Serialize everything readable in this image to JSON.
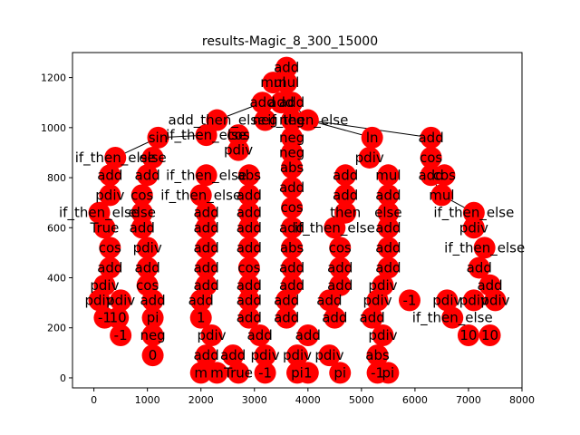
{
  "title": "results-Magic_8_300_15000",
  "chart_data": {
    "type": "scatter",
    "title": "results-Magic_8_300_15000",
    "xlim": [
      -400,
      8000
    ],
    "ylim": [
      -40,
      1300
    ],
    "x_ticks": [
      0,
      1000,
      2000,
      3000,
      4000,
      5000,
      6000,
      7000,
      8000
    ],
    "y_ticks": [
      0,
      200,
      400,
      600,
      800,
      1000,
      1200
    ],
    "node_color": "#ff0000",
    "edge_color": "#000000",
    "nodes": [
      {
        "id": "root",
        "x": 3600,
        "y": 1240,
        "label": "add"
      },
      {
        "id": "n1",
        "x": 3350,
        "y": 1180,
        "label": "mul"
      },
      {
        "id": "n2",
        "x": 3600,
        "y": 1180,
        "label": "mul"
      },
      {
        "id": "n3",
        "x": 3150,
        "y": 1100,
        "label": "add"
      },
      {
        "id": "n4",
        "x": 3500,
        "y": 1100,
        "label": "add"
      },
      {
        "id": "n5",
        "x": 3700,
        "y": 1100,
        "label": "add"
      },
      {
        "id": "ite1",
        "x": 2300,
        "y": 1030,
        "label": "add_then_else"
      },
      {
        "id": "ite2",
        "x": 4000,
        "y": 1030,
        "label": "if_then_else"
      },
      {
        "id": "n8",
        "x": 3200,
        "y": 1030,
        "label": "neg"
      },
      {
        "id": "n9",
        "x": 3700,
        "y": 1030,
        "label": "neg"
      },
      {
        "id": "ite3",
        "x": 2100,
        "y": 970,
        "label": "if_then_else"
      },
      {
        "id": "sin",
        "x": 1200,
        "y": 960,
        "label": "sin"
      },
      {
        "id": "n11",
        "x": 2700,
        "y": 970,
        "label": "cos"
      },
      {
        "id": "n12",
        "x": 3700,
        "y": 960,
        "label": "neg"
      },
      {
        "id": "ln",
        "x": 5200,
        "y": 960,
        "label": "ln"
      },
      {
        "id": "r1",
        "x": 6300,
        "y": 960,
        "label": "add"
      },
      {
        "id": "ite4",
        "x": 400,
        "y": 880,
        "label": "if_then_else"
      },
      {
        "id": "n14",
        "x": 1100,
        "y": 880,
        "label": "else"
      },
      {
        "id": "n15",
        "x": 2700,
        "y": 910,
        "label": "pdiv"
      },
      {
        "id": "n16",
        "x": 3700,
        "y": 900,
        "label": "neg"
      },
      {
        "id": "pdiv1",
        "x": 5150,
        "y": 880,
        "label": "pdiv"
      },
      {
        "id": "r2",
        "x": 6300,
        "y": 880,
        "label": "cos"
      },
      {
        "id": "n18",
        "x": 300,
        "y": 810,
        "label": "add"
      },
      {
        "id": "n19",
        "x": 1000,
        "y": 810,
        "label": "add"
      },
      {
        "id": "n20",
        "x": 2100,
        "y": 810,
        "label": "if_then_else"
      },
      {
        "id": "n21",
        "x": 2900,
        "y": 810,
        "label": "abs"
      },
      {
        "id": "n22",
        "x": 3700,
        "y": 840,
        "label": "abs"
      },
      {
        "id": "n23",
        "x": 4700,
        "y": 810,
        "label": "add"
      },
      {
        "id": "mul1",
        "x": 5500,
        "y": 810,
        "label": "mul"
      },
      {
        "id": "r3",
        "x": 6300,
        "y": 810,
        "label": "add"
      },
      {
        "id": "r3b",
        "x": 6550,
        "y": 810,
        "label": "cos"
      },
      {
        "id": "n24",
        "x": 300,
        "y": 730,
        "label": "pdiv"
      },
      {
        "id": "n25",
        "x": 900,
        "y": 730,
        "label": "cos"
      },
      {
        "id": "n26",
        "x": 2000,
        "y": 730,
        "label": "if_then_else"
      },
      {
        "id": "n27",
        "x": 2900,
        "y": 730,
        "label": "add"
      },
      {
        "id": "n28",
        "x": 3700,
        "y": 760,
        "label": "add"
      },
      {
        "id": "n29",
        "x": 4700,
        "y": 730,
        "label": "add"
      },
      {
        "id": "n30",
        "x": 5500,
        "y": 730,
        "label": "add"
      },
      {
        "id": "r4",
        "x": 6500,
        "y": 730,
        "label": "mul"
      },
      {
        "id": "ite5",
        "x": 100,
        "y": 660,
        "label": "if_then_else"
      },
      {
        "id": "n32",
        "x": 900,
        "y": 660,
        "label": "else"
      },
      {
        "id": "n33",
        "x": 2100,
        "y": 660,
        "label": "add"
      },
      {
        "id": "n34",
        "x": 2900,
        "y": 660,
        "label": "add"
      },
      {
        "id": "n35",
        "x": 3700,
        "y": 680,
        "label": "cos"
      },
      {
        "id": "n36",
        "x": 4700,
        "y": 660,
        "label": "then"
      },
      {
        "id": "n37",
        "x": 5500,
        "y": 660,
        "label": "else"
      },
      {
        "id": "r5",
        "x": 7100,
        "y": 660,
        "label": "if_then_else"
      },
      {
        "id": "n38",
        "x": 200,
        "y": 600,
        "label": "True"
      },
      {
        "id": "n39",
        "x": 900,
        "y": 600,
        "label": "add"
      },
      {
        "id": "n40",
        "x": 2100,
        "y": 600,
        "label": "add"
      },
      {
        "id": "n41",
        "x": 2900,
        "y": 600,
        "label": "add"
      },
      {
        "id": "n42",
        "x": 3700,
        "y": 600,
        "label": "add"
      },
      {
        "id": "n43",
        "x": 4500,
        "y": 600,
        "label": "if_then_else"
      },
      {
        "id": "n44",
        "x": 5500,
        "y": 600,
        "label": "add"
      },
      {
        "id": "r6",
        "x": 7100,
        "y": 600,
        "label": "pdiv"
      },
      {
        "id": "n45",
        "x": 300,
        "y": 520,
        "label": "cos"
      },
      {
        "id": "n46",
        "x": 1000,
        "y": 520,
        "label": "pdiv"
      },
      {
        "id": "n47",
        "x": 2100,
        "y": 520,
        "label": "add"
      },
      {
        "id": "n48",
        "x": 2900,
        "y": 520,
        "label": "add"
      },
      {
        "id": "n49",
        "x": 3700,
        "y": 520,
        "label": "abs"
      },
      {
        "id": "n50",
        "x": 4600,
        "y": 520,
        "label": "cos"
      },
      {
        "id": "n51",
        "x": 5500,
        "y": 520,
        "label": "add"
      },
      {
        "id": "r7",
        "x": 7300,
        "y": 520,
        "label": "if_then_else"
      },
      {
        "id": "n52",
        "x": 300,
        "y": 440,
        "label": "add"
      },
      {
        "id": "n53",
        "x": 1000,
        "y": 440,
        "label": "add"
      },
      {
        "id": "n54",
        "x": 2100,
        "y": 440,
        "label": "add"
      },
      {
        "id": "n55",
        "x": 2900,
        "y": 440,
        "label": "cos"
      },
      {
        "id": "n56",
        "x": 3700,
        "y": 440,
        "label": "add"
      },
      {
        "id": "n57",
        "x": 4600,
        "y": 440,
        "label": "add"
      },
      {
        "id": "n58",
        "x": 5500,
        "y": 440,
        "label": "add"
      },
      {
        "id": "r8",
        "x": 7200,
        "y": 440,
        "label": "add"
      },
      {
        "id": "n59",
        "x": 200,
        "y": 370,
        "label": "pdiv"
      },
      {
        "id": "n60",
        "x": 1000,
        "y": 370,
        "label": "cos"
      },
      {
        "id": "n61",
        "x": 2100,
        "y": 370,
        "label": "add"
      },
      {
        "id": "n62",
        "x": 2900,
        "y": 370,
        "label": "add"
      },
      {
        "id": "n63",
        "x": 3700,
        "y": 370,
        "label": "add"
      },
      {
        "id": "n64",
        "x": 4600,
        "y": 370,
        "label": "add"
      },
      {
        "id": "n65",
        "x": 5400,
        "y": 370,
        "label": "pdiv"
      },
      {
        "id": "r9",
        "x": 7400,
        "y": 370,
        "label": "add"
      },
      {
        "id": "n66",
        "x": 100,
        "y": 310,
        "label": "pdiv"
      },
      {
        "id": "n67",
        "x": 500,
        "y": 310,
        "label": "pdiv"
      },
      {
        "id": "n68",
        "x": 1100,
        "y": 310,
        "label": "add"
      },
      {
        "id": "n69",
        "x": 2000,
        "y": 310,
        "label": "add"
      },
      {
        "id": "n70",
        "x": 2900,
        "y": 310,
        "label": "add"
      },
      {
        "id": "n71",
        "x": 3600,
        "y": 310,
        "label": "add"
      },
      {
        "id": "n72",
        "x": 4400,
        "y": 310,
        "label": "add"
      },
      {
        "id": "n73",
        "x": 5300,
        "y": 310,
        "label": "pdiv"
      },
      {
        "id": "n74",
        "x": 5900,
        "y": 310,
        "label": "-1"
      },
      {
        "id": "r10",
        "x": 6600,
        "y": 310,
        "label": "pdiv"
      },
      {
        "id": "r11",
        "x": 7100,
        "y": 310,
        "label": "pdiv"
      },
      {
        "id": "r12",
        "x": 7500,
        "y": 310,
        "label": "pdiv"
      },
      {
        "id": "n75",
        "x": 200,
        "y": 240,
        "label": "-1"
      },
      {
        "id": "n76",
        "x": 450,
        "y": 240,
        "label": "10"
      },
      {
        "id": "n77",
        "x": 1100,
        "y": 240,
        "label": "pi"
      },
      {
        "id": "n78",
        "x": 2000,
        "y": 240,
        "label": "1"
      },
      {
        "id": "n79",
        "x": 2900,
        "y": 240,
        "label": "add"
      },
      {
        "id": "n80",
        "x": 3600,
        "y": 240,
        "label": "add"
      },
      {
        "id": "n81",
        "x": 4500,
        "y": 240,
        "label": "add"
      },
      {
        "id": "n82",
        "x": 5200,
        "y": 240,
        "label": "add"
      },
      {
        "id": "r13",
        "x": 6700,
        "y": 240,
        "label": "if_then_else"
      },
      {
        "id": "n83",
        "x": 500,
        "y": 170,
        "label": "-1"
      },
      {
        "id": "n84",
        "x": 1100,
        "y": 170,
        "label": "neg"
      },
      {
        "id": "n85",
        "x": 2200,
        "y": 170,
        "label": "pdiv"
      },
      {
        "id": "n86",
        "x": 3100,
        "y": 170,
        "label": "add"
      },
      {
        "id": "n87",
        "x": 4000,
        "y": 170,
        "label": "add"
      },
      {
        "id": "n88",
        "x": 5400,
        "y": 170,
        "label": "pdiv"
      },
      {
        "id": "r14",
        "x": 7000,
        "y": 170,
        "label": "10"
      },
      {
        "id": "r15",
        "x": 7400,
        "y": 170,
        "label": "10"
      },
      {
        "id": "n89",
        "x": 1100,
        "y": 90,
        "label": "0"
      },
      {
        "id": "n90",
        "x": 2100,
        "y": 90,
        "label": "add"
      },
      {
        "id": "n91",
        "x": 2600,
        "y": 90,
        "label": "add"
      },
      {
        "id": "n92",
        "x": 3200,
        "y": 90,
        "label": "pdiv"
      },
      {
        "id": "n93",
        "x": 3800,
        "y": 90,
        "label": "pdiv"
      },
      {
        "id": "n94",
        "x": 4400,
        "y": 90,
        "label": "pdiv"
      },
      {
        "id": "n95",
        "x": 5300,
        "y": 90,
        "label": "abs"
      },
      {
        "id": "n96",
        "x": 2000,
        "y": 20,
        "label": "m"
      },
      {
        "id": "n97",
        "x": 2300,
        "y": 20,
        "label": "m"
      },
      {
        "id": "n98",
        "x": 2700,
        "y": 20,
        "label": "True"
      },
      {
        "id": "n99",
        "x": 3200,
        "y": 20,
        "label": "-1"
      },
      {
        "id": "n100",
        "x": 3800,
        "y": 20,
        "label": "pi"
      },
      {
        "id": "n101",
        "x": 4000,
        "y": 20,
        "label": "1"
      },
      {
        "id": "n102",
        "x": 4600,
        "y": 20,
        "label": "pi"
      },
      {
        "id": "n103",
        "x": 5300,
        "y": 20,
        "label": "-1"
      },
      {
        "id": "n104",
        "x": 5500,
        "y": 20,
        "label": "pi"
      }
    ],
    "edges": [
      [
        "root",
        "n4"
      ],
      [
        "n4",
        "n3"
      ],
      [
        "n4",
        "n5"
      ],
      [
        "n3",
        "ite1"
      ],
      [
        "n5",
        "ite2"
      ],
      [
        "ite1",
        "ite3"
      ],
      [
        "ite3",
        "sin"
      ],
      [
        "sin",
        "ite4"
      ],
      [
        "ite2",
        "r1"
      ],
      [
        "ite2",
        "ln"
      ],
      [
        "r1",
        "r2"
      ],
      [
        "r2",
        "r3"
      ],
      [
        "r3",
        "r4"
      ],
      [
        "r4",
        "r5"
      ]
    ]
  }
}
